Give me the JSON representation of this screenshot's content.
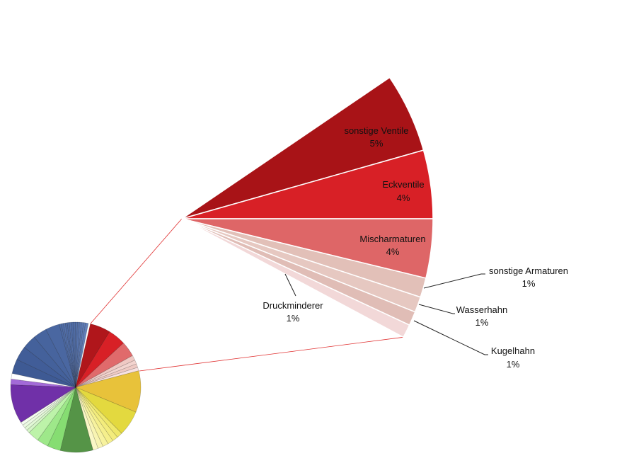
{
  "chart_data": {
    "type": "pie",
    "subtype": "pie-of-pie (exploded sector)",
    "title": "",
    "detail_slices": [
      {
        "label": "sonstige Ventile",
        "display": "5%",
        "value": 5.1,
        "color": "#a81317"
      },
      {
        "label": "Eckventile",
        "display": "4%",
        "value": 4.4,
        "color": "#d82026"
      },
      {
        "label": "Mischarmaturen",
        "display": "4%",
        "value": 3.8,
        "color": "#de6667"
      },
      {
        "label": "sonstige Armaturen",
        "display": "1%",
        "value": 1.25,
        "color": "#e2c0b8"
      },
      {
        "label": "Wasserhahn",
        "display": "1%",
        "value": 1.0,
        "color": "#e6c8c1"
      },
      {
        "label": "Kugelhahn",
        "display": "1%",
        "value": 0.9,
        "color": "#e0bdb6"
      },
      {
        "label": "Druckminderer",
        "display": "1%",
        "value": 0.86,
        "color": "#f2d8d8"
      }
    ],
    "overview_slices": [
      {
        "value": 5.1,
        "color": "#b0161b"
      },
      {
        "value": 4.4,
        "color": "#d82026"
      },
      {
        "value": 3.8,
        "color": "#e06a6b"
      },
      {
        "value": 1.25,
        "color": "#efc9c4"
      },
      {
        "value": 1.0,
        "color": "#f3d4cf"
      },
      {
        "value": 0.9,
        "color": "#efcac4"
      },
      {
        "value": 0.86,
        "color": "#f8e2e2"
      },
      {
        "value": 10.3,
        "color": "#e8c23a"
      },
      {
        "value": 6.3,
        "color": "#e3d93f"
      },
      {
        "value": 1.4,
        "color": "#efe86a"
      },
      {
        "value": 1.4,
        "color": "#f3ec7c"
      },
      {
        "value": 1.4,
        "color": "#f5ef8c"
      },
      {
        "value": 1.4,
        "color": "#f7f29e"
      },
      {
        "value": 1.3,
        "color": "#f8f4b2"
      },
      {
        "value": 1.3,
        "color": "#faf7c6"
      },
      {
        "value": 8.1,
        "color": "#559447"
      },
      {
        "value": 3.3,
        "color": "#86dd72"
      },
      {
        "value": 2.8,
        "color": "#9ee88a"
      },
      {
        "value": 2.8,
        "color": "#bdf3a9"
      },
      {
        "value": 0.8,
        "color": "#d6f6c8"
      },
      {
        "value": 0.8,
        "color": "#e2f8d6"
      },
      {
        "value": 0.8,
        "color": "#ebf9e2"
      },
      {
        "value": 0.8,
        "color": "#f3fbee"
      },
      {
        "value": 9.7,
        "color": "#7030a8"
      },
      {
        "value": 1.4,
        "color": "#a36ad8"
      },
      {
        "value": 1.4,
        "color": "#ffffff"
      },
      {
        "value": 3.6,
        "color": "#3e5a94"
      },
      {
        "value": 3.5,
        "color": "#415d98"
      },
      {
        "value": 3.5,
        "color": "#44619b"
      },
      {
        "value": 3.4,
        "color": "#47649e"
      },
      {
        "value": 3.5,
        "color": "#4a67a1"
      },
      {
        "value": 0.5,
        "color": "#4d6aa4"
      },
      {
        "value": 0.5,
        "color": "#506da7"
      },
      {
        "value": 0.5,
        "color": "#5370aa"
      },
      {
        "value": 0.5,
        "color": "#4d6aa4"
      },
      {
        "value": 0.5,
        "color": "#506da7"
      },
      {
        "value": 0.5,
        "color": "#5370aa"
      },
      {
        "value": 0.5,
        "color": "#4d6aa4"
      },
      {
        "value": 0.5,
        "color": "#506da7"
      },
      {
        "value": 0.5,
        "color": "#5370aa"
      },
      {
        "value": 0.5,
        "color": "#5673ad"
      },
      {
        "value": 0.5,
        "color": "#5976b0"
      },
      {
        "value": 0.5,
        "color": "#5c79b3"
      },
      {
        "value": 0.5,
        "color": "#5f7cb6"
      },
      {
        "value": 0.7,
        "color": "#6280b9"
      }
    ],
    "connector_color": "#e03030",
    "legend": "none"
  }
}
